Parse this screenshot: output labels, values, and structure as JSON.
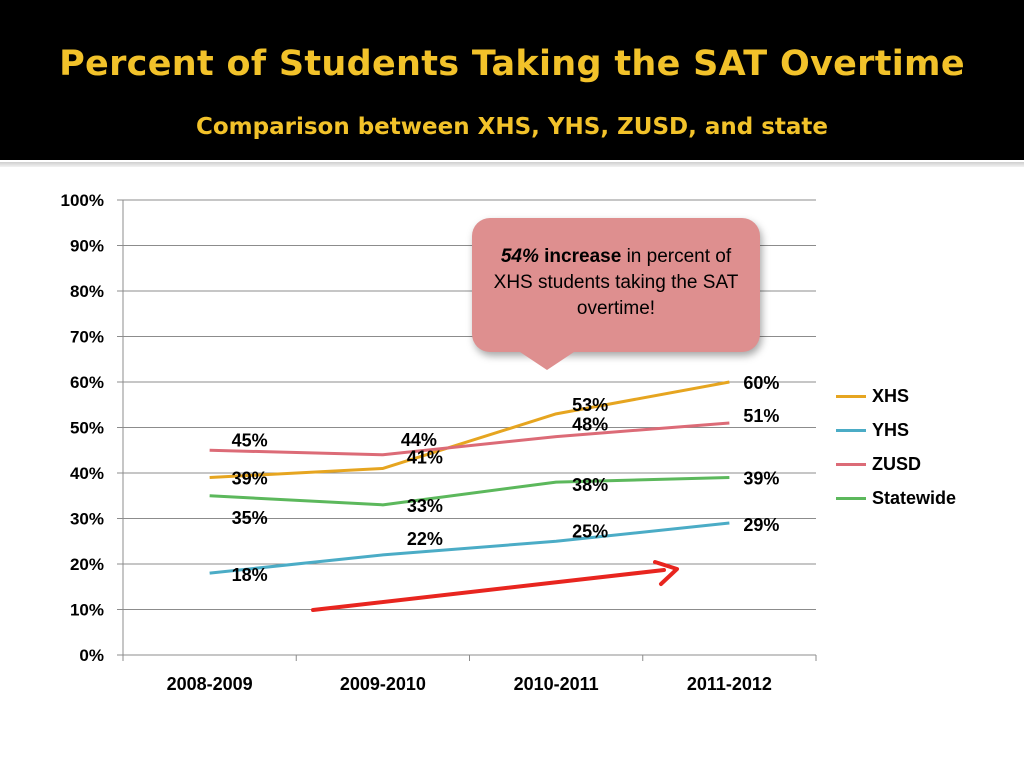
{
  "slide": {
    "title": "Percent of Students Taking the SAT Overtime",
    "subtitle": "Comparison between XHS, YHS, ZUSD, and state"
  },
  "callout": {
    "emphasis_value": "54%",
    "emphasis_word": "increase",
    "text": "in percent of XHS students taking the SAT overtime!",
    "color": "#de8f8f"
  },
  "trend_arrow": {
    "color": "#e8251f",
    "direction": "upward-right"
  },
  "chart_data": {
    "type": "line",
    "categories": [
      "2008-2009",
      "2009-2010",
      "2010-2011",
      "2011-2012"
    ],
    "ylim": [
      0,
      100
    ],
    "yticks": [
      "0%",
      "10%",
      "20%",
      "30%",
      "40%",
      "50%",
      "60%",
      "70%",
      "80%",
      "90%",
      "100%"
    ],
    "grid": true,
    "legend_position": "right",
    "series": [
      {
        "name": "XHS",
        "color": "#e6a520",
        "values": [
          39,
          41,
          53,
          60
        ],
        "labels": [
          "39%",
          "41%",
          "53%",
          "60%"
        ]
      },
      {
        "name": "YHS",
        "color": "#4bacc6",
        "values": [
          18,
          22,
          25,
          29
        ],
        "labels": [
          "18%",
          "22%",
          "25%",
          "29%"
        ]
      },
      {
        "name": "ZUSD",
        "color": "#dc6b77",
        "values": [
          45,
          44,
          48,
          51
        ],
        "labels": [
          "45%",
          "44%",
          "48%",
          "51%"
        ]
      },
      {
        "name": "Statewide",
        "color": "#5cb85c",
        "values": [
          35,
          33,
          38,
          39
        ],
        "labels": [
          "35%",
          "33%",
          "38%",
          "39%"
        ]
      }
    ]
  }
}
